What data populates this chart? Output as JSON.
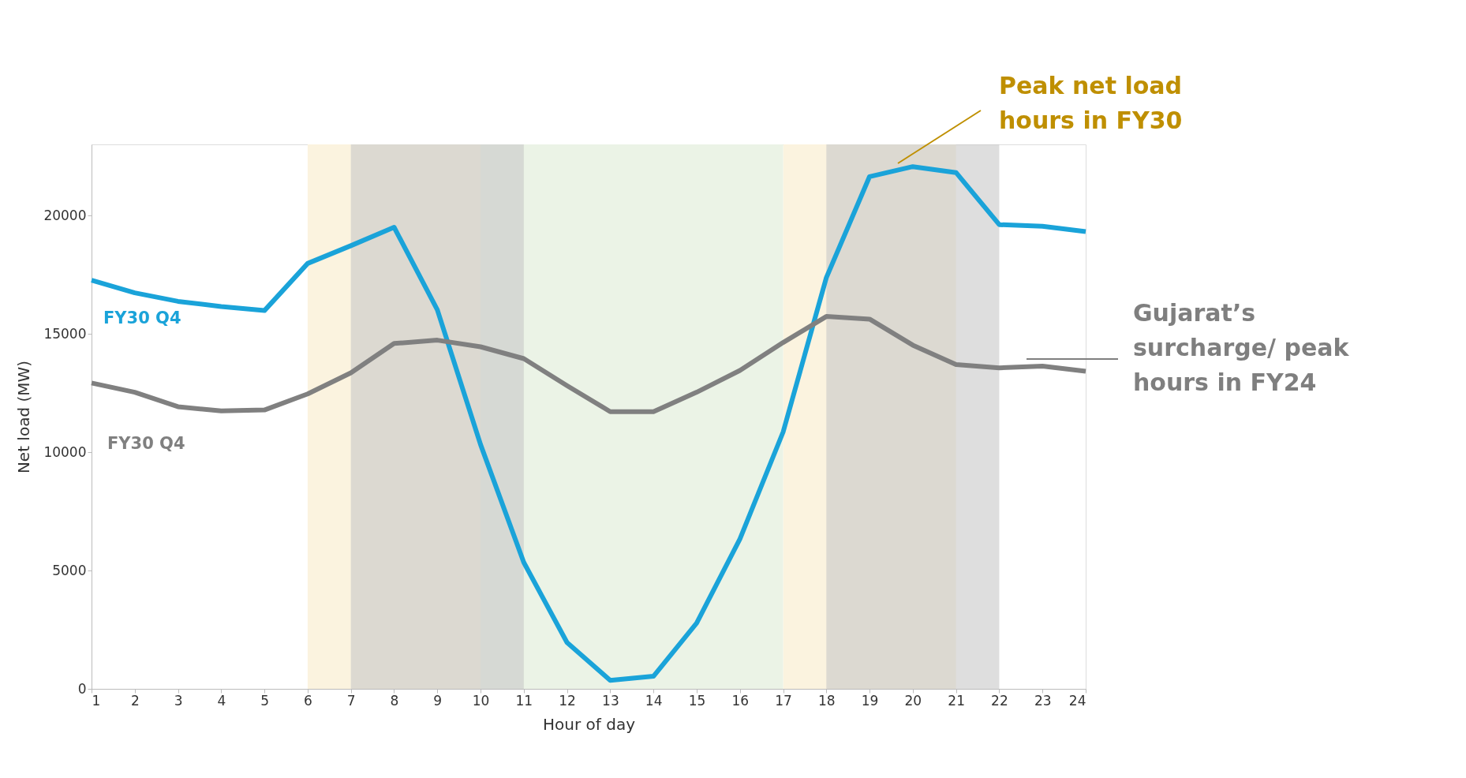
{
  "chart_data": {
    "type": "line",
    "xlabel": "Hour of day",
    "ylabel": "Net load (MW)",
    "x": [
      1,
      2,
      3,
      4,
      5,
      6,
      7,
      8,
      9,
      10,
      11,
      12,
      13,
      14,
      15,
      16,
      17,
      18,
      19,
      20,
      21,
      22,
      23,
      24
    ],
    "series": [
      {
        "name": "FY30 Q4",
        "color": "#1aa3d9",
        "values": [
          17260,
          16730,
          16370,
          16150,
          15980,
          17970,
          18720,
          19500,
          16010,
          10320,
          5340,
          1960,
          360,
          530,
          2780,
          6330,
          10850,
          17370,
          21640,
          22060,
          21810,
          19610,
          19540,
          19320
        ]
      },
      {
        "name": "FY30 Q4",
        "color": "#808080",
        "values": [
          12920,
          12530,
          11920,
          11740,
          11780,
          12460,
          13350,
          14590,
          14730,
          14450,
          13950,
          12810,
          11710,
          11710,
          12530,
          13450,
          14630,
          15730,
          15620,
          14520,
          13700,
          13560,
          13630,
          13420
        ]
      }
    ],
    "xlim": [
      1,
      24
    ],
    "xticks": [
      1,
      2,
      3,
      4,
      5,
      6,
      7,
      8,
      9,
      10,
      11,
      12,
      13,
      14,
      15,
      16,
      17,
      18,
      19,
      20,
      21,
      22,
      23,
      24
    ],
    "ylim": [
      0,
      23000
    ],
    "yticks": [
      0,
      5000,
      10000,
      15000,
      20000
    ],
    "bands": [
      {
        "axis": "x",
        "from": 6,
        "to": 10,
        "color": "#fbf3df"
      },
      {
        "axis": "x",
        "from": 17,
        "to": 21,
        "color": "#fbf3df"
      },
      {
        "axis": "x",
        "from": 10,
        "to": 17,
        "color": "#ebf3e6"
      },
      {
        "axis": "x",
        "from": 7,
        "to": 11,
        "color": "#c8c8c8"
      },
      {
        "axis": "x",
        "from": 18,
        "to": 22,
        "color": "#c8c8c8"
      }
    ],
    "annotations": [
      "Peak net load hours in FY30",
      "Gujarat’s surcharge/ peak hours in FY24"
    ],
    "grid": false,
    "legend": false,
    "line_style": "solid",
    "marker": "none"
  }
}
